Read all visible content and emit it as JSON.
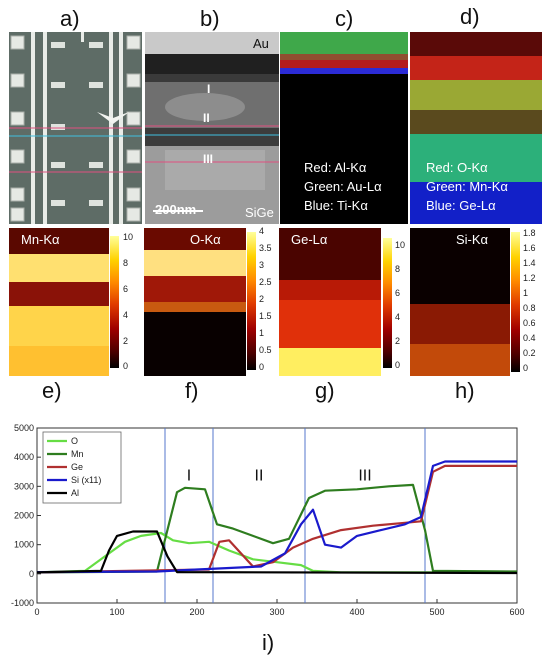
{
  "panel_labels": {
    "a": "a)",
    "b": "b)",
    "c": "c)",
    "d": "d)",
    "e": "e)",
    "f": "f)",
    "g": "g)",
    "h": "h)",
    "i": "i)"
  },
  "panel_b": {
    "au_label": "Au",
    "region_1": "I",
    "region_2": "II",
    "region_3": "III",
    "scale_text": "200nm",
    "substrate_label": "SiGe"
  },
  "panel_c": {
    "line1": "Red: Al-Kα",
    "line2": "Green: Au-Lα",
    "line3": "Blue: Ti-Kα"
  },
  "panel_d": {
    "line1": "Red: O-Kα",
    "line2": "Green: Mn-Kα",
    "line3": "Blue: Ge-Lα"
  },
  "maps": {
    "e": {
      "title": "Mn-Kα",
      "ticks": [
        "10",
        "8",
        "6",
        "4",
        "2",
        "0"
      ]
    },
    "f": {
      "title": "O-Kα",
      "ticks": [
        "4",
        "3.5",
        "3",
        "2.5",
        "2",
        "1.5",
        "1",
        "0.5",
        "0"
      ]
    },
    "g": {
      "title": "Ge-Lα",
      "ticks": [
        "10",
        "8",
        "6",
        "4",
        "2",
        "0"
      ]
    },
    "h": {
      "title": "Si-Kα",
      "ticks": [
        "1.8",
        "1.6",
        "1.4",
        "1.2",
        "1",
        "0.8",
        "0.6",
        "0.4",
        "0.2",
        "0"
      ]
    }
  },
  "chart_data": {
    "type": "line",
    "xlim": [
      0,
      600
    ],
    "ylim": [
      -1000,
      5000
    ],
    "x_ticks": [
      "0",
      "100",
      "200",
      "300",
      "400",
      "500",
      "600"
    ],
    "y_ticks": [
      "5000",
      "4000",
      "3000",
      "2000",
      "1000",
      "0",
      "-1000"
    ],
    "region_boundaries": [
      160,
      220,
      335,
      485
    ],
    "region_labels": [
      "I",
      "II",
      "III"
    ],
    "legend_position": "top-left",
    "series": [
      {
        "name": "O",
        "color": "#66dd44",
        "points": [
          [
            0,
            50
          ],
          [
            60,
            100
          ],
          [
            90,
            700
          ],
          [
            110,
            1100
          ],
          [
            130,
            1300
          ],
          [
            155,
            1400
          ],
          [
            170,
            1150
          ],
          [
            190,
            1050
          ],
          [
            215,
            1100
          ],
          [
            240,
            800
          ],
          [
            270,
            500
          ],
          [
            300,
            400
          ],
          [
            330,
            300
          ],
          [
            345,
            100
          ],
          [
            380,
            50
          ],
          [
            600,
            50
          ]
        ]
      },
      {
        "name": "Mn",
        "color": "#2e7d1f",
        "points": [
          [
            0,
            50
          ],
          [
            150,
            80
          ],
          [
            163,
            1500
          ],
          [
            175,
            2800
          ],
          [
            185,
            2950
          ],
          [
            210,
            2900
          ],
          [
            225,
            1700
          ],
          [
            245,
            1550
          ],
          [
            270,
            1300
          ],
          [
            295,
            1050
          ],
          [
            315,
            1200
          ],
          [
            340,
            2600
          ],
          [
            360,
            2850
          ],
          [
            400,
            2900
          ],
          [
            440,
            3000
          ],
          [
            470,
            3050
          ],
          [
            485,
            1500
          ],
          [
            495,
            100
          ],
          [
            600,
            80
          ]
        ]
      },
      {
        "name": "Ge",
        "color": "#b03030",
        "points": [
          [
            0,
            50
          ],
          [
            215,
            150
          ],
          [
            228,
            1100
          ],
          [
            240,
            1150
          ],
          [
            255,
            700
          ],
          [
            270,
            250
          ],
          [
            295,
            400
          ],
          [
            320,
            900
          ],
          [
            345,
            1200
          ],
          [
            380,
            1500
          ],
          [
            420,
            1650
          ],
          [
            460,
            1750
          ],
          [
            480,
            1800
          ],
          [
            495,
            3500
          ],
          [
            510,
            3700
          ],
          [
            600,
            3700
          ]
        ]
      },
      {
        "name": "Si (x11)",
        "color": "#1a1acc",
        "points": [
          [
            0,
            60
          ],
          [
            150,
            80
          ],
          [
            200,
            150
          ],
          [
            240,
            200
          ],
          [
            280,
            250
          ],
          [
            310,
            700
          ],
          [
            330,
            1700
          ],
          [
            345,
            2200
          ],
          [
            360,
            1000
          ],
          [
            380,
            900
          ],
          [
            400,
            1300
          ],
          [
            430,
            1500
          ],
          [
            460,
            1700
          ],
          [
            480,
            1950
          ],
          [
            495,
            3700
          ],
          [
            510,
            3850
          ],
          [
            550,
            3850
          ],
          [
            600,
            3850
          ]
        ]
      },
      {
        "name": "Al",
        "color": "#000000",
        "points": [
          [
            0,
            50
          ],
          [
            80,
            100
          ],
          [
            90,
            800
          ],
          [
            100,
            1300
          ],
          [
            120,
            1450
          ],
          [
            150,
            1450
          ],
          [
            163,
            600
          ],
          [
            175,
            60
          ],
          [
            600,
            30
          ]
        ]
      }
    ]
  }
}
